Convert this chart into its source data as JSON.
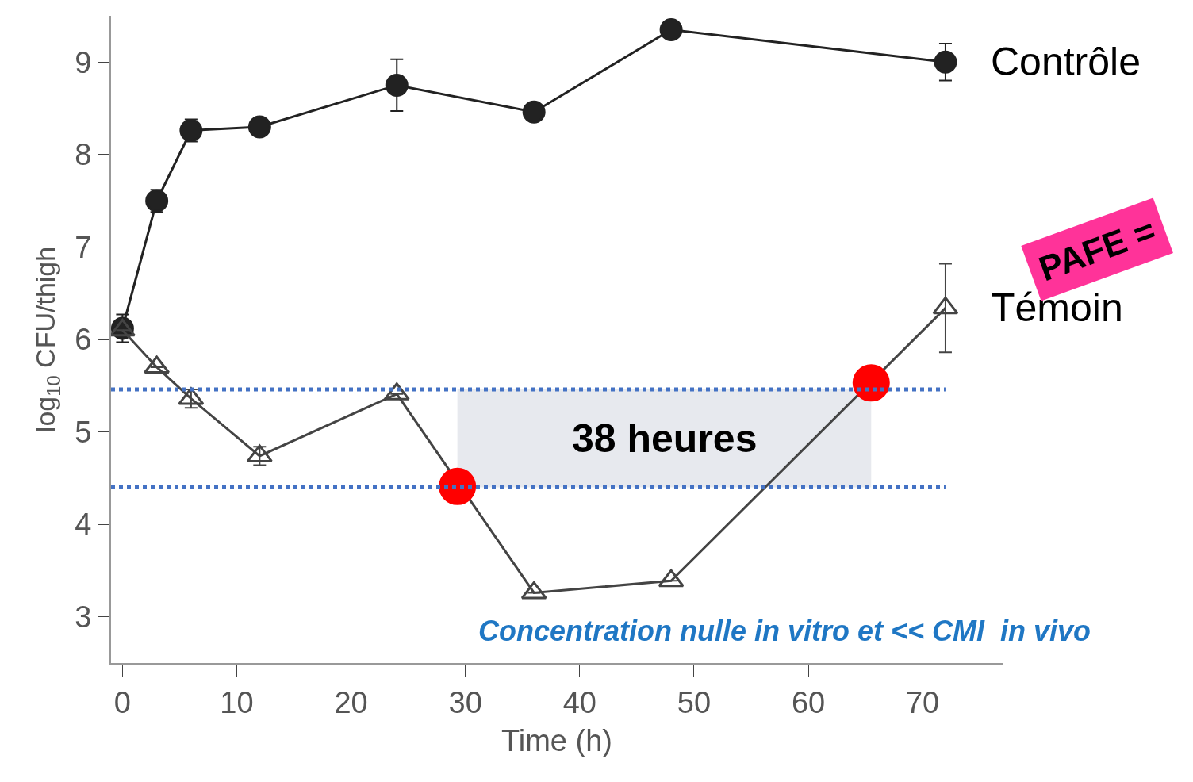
{
  "chart_data": {
    "type": "line",
    "xlabel": "Time (h)",
    "ylabel": "log$_{10}$ CFU/thigh",
    "xlim": [
      -1,
      77
    ],
    "xticks": [
      0,
      10,
      20,
      30,
      40,
      50,
      60,
      70
    ],
    "ylim": [
      2.5,
      9.5
    ],
    "yticks": [
      3,
      4,
      5,
      6,
      7,
      8,
      9
    ],
    "grid": false,
    "legend": false,
    "series": [
      {
        "name": "Contrôle",
        "color": "#222222",
        "marker": "circle",
        "x": [
          0,
          3,
          6,
          12,
          24,
          36,
          48,
          72
        ],
        "values": [
          6.12,
          7.5,
          8.26,
          8.3,
          8.75,
          8.46,
          9.35,
          9.0
        ],
        "errors": [
          0.15,
          0.12,
          0.12,
          null,
          0.28,
          null,
          null,
          0.2
        ]
      },
      {
        "name": "Témoin",
        "color": "#444444",
        "marker": "triangle",
        "x": [
          0,
          3,
          6,
          12,
          24,
          36,
          48,
          72
        ],
        "values": [
          6.1,
          5.7,
          5.36,
          4.74,
          5.41,
          3.26,
          3.39,
          6.34
        ],
        "errors": [
          null,
          null,
          0.1,
          0.1,
          null,
          null,
          null,
          0.48
        ]
      },
      {
        "type": "scatter",
        "color": "#ff0000",
        "marker": "circle",
        "x": [
          29.3,
          65.5
        ],
        "values": [
          4.41,
          5.53
        ]
      }
    ],
    "ref_lines": [
      {
        "axis": "y",
        "value": 5.46,
        "color": "#4472c4",
        "line_style": "dotted"
      },
      {
        "axis": "y",
        "value": 4.4,
        "color": "#4472c4",
        "line_style": "dotted"
      }
    ],
    "bands": [
      {
        "axis": "x",
        "from": 29.3,
        "to": 65.5,
        "label": "38 heures",
        "color": "#e7e9ee"
      }
    ],
    "annotations": [
      "PAFE =",
      "Concentration nulle in vitro et << CMI  in vivo"
    ]
  }
}
